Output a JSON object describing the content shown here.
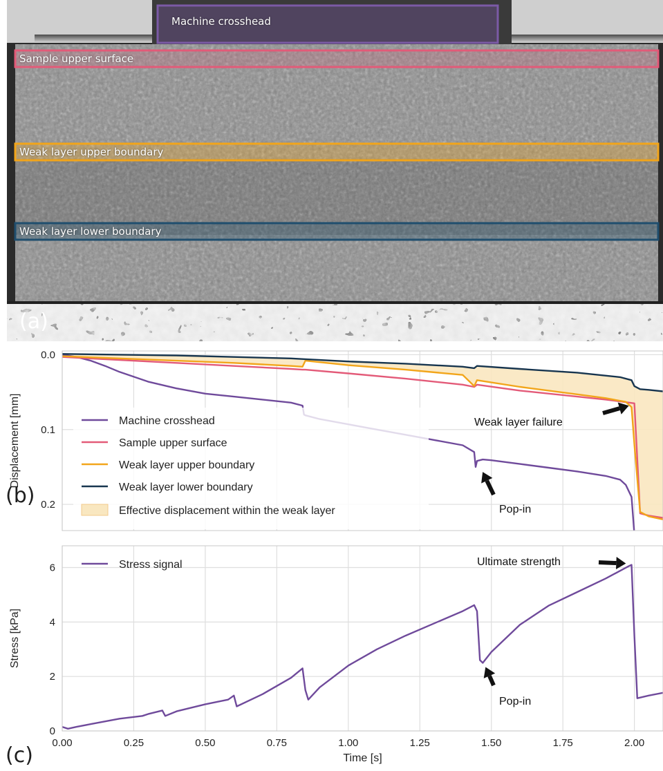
{
  "image_panel": {
    "panel_letter": "(a)",
    "regions": [
      {
        "label": "Machine crosshead",
        "color": "#7b5aa6"
      },
      {
        "label": "Sample upper surface",
        "color": "#e35a78"
      },
      {
        "label": "Weak layer upper boundary",
        "color": "#f2a51a"
      },
      {
        "label": "Weak layer lower boundary",
        "color": "#1f4e6e"
      }
    ]
  },
  "chart_data": [
    {
      "type": "line",
      "panel_letter": "(b)",
      "ylabel": "Displacement [mm]",
      "xlim": [
        0,
        2.1
      ],
      "ylim": [
        0.235,
        -0.005
      ],
      "yticks": [
        "0.0",
        "0.1",
        "0.2"
      ],
      "grid": true,
      "legend_position": "left",
      "series": [
        {
          "name": "Machine crosshead",
          "color": "#6f4a9b",
          "x": [
            0,
            0.05,
            0.1,
            0.15,
            0.2,
            0.3,
            0.4,
            0.5,
            0.6,
            0.7,
            0.8,
            0.84,
            0.845,
            0.85,
            0.9,
            1.0,
            1.1,
            1.2,
            1.3,
            1.4,
            1.44,
            1.445,
            1.45,
            1.47,
            1.5,
            1.6,
            1.7,
            1.8,
            1.9,
            1.95,
            1.97,
            1.99,
            2.0
          ],
          "y": [
            0.0,
            0.003,
            0.008,
            0.015,
            0.023,
            0.036,
            0.045,
            0.052,
            0.056,
            0.06,
            0.064,
            0.068,
            0.08,
            0.081,
            0.086,
            0.093,
            0.1,
            0.107,
            0.114,
            0.121,
            0.13,
            0.15,
            0.142,
            0.14,
            0.141,
            0.146,
            0.151,
            0.156,
            0.162,
            0.167,
            0.174,
            0.19,
            0.24
          ]
        },
        {
          "name": "Sample upper surface",
          "color": "#e35a78",
          "x": [
            0,
            0.2,
            0.4,
            0.6,
            0.8,
            0.84,
            0.85,
            1.0,
            1.2,
            1.4,
            1.44,
            1.45,
            1.6,
            1.8,
            1.9,
            2.0,
            2.02,
            2.05,
            2.1
          ],
          "y": [
            0.003,
            0.007,
            0.011,
            0.015,
            0.019,
            0.02,
            0.02,
            0.025,
            0.032,
            0.04,
            0.043,
            0.04,
            0.048,
            0.056,
            0.06,
            0.065,
            0.212,
            0.215,
            0.218
          ]
        },
        {
          "name": "Weak layer upper boundary",
          "color": "#f2a51a",
          "x": [
            0,
            0.2,
            0.4,
            0.6,
            0.8,
            0.84,
            0.85,
            1.0,
            1.2,
            1.4,
            1.44,
            1.45,
            1.6,
            1.8,
            1.9,
            1.97,
            1.99,
            2.0,
            2.02,
            2.05,
            2.1
          ],
          "y": [
            0.002,
            0.005,
            0.008,
            0.011,
            0.015,
            0.016,
            0.008,
            0.014,
            0.02,
            0.027,
            0.042,
            0.034,
            0.043,
            0.053,
            0.058,
            0.063,
            0.07,
            0.12,
            0.21,
            0.216,
            0.22
          ]
        },
        {
          "name": "Weak layer lower boundary",
          "color": "#17354f",
          "x": [
            0,
            0.2,
            0.4,
            0.6,
            0.8,
            0.85,
            1.0,
            1.2,
            1.4,
            1.44,
            1.45,
            1.6,
            1.8,
            1.95,
            1.99,
            2.0,
            2.02,
            2.05,
            2.1
          ],
          "y": [
            -0.001,
            0.0,
            0.001,
            0.003,
            0.005,
            0.006,
            0.009,
            0.012,
            0.016,
            0.018,
            0.015,
            0.019,
            0.024,
            0.03,
            0.034,
            0.042,
            0.046,
            0.047,
            0.049
          ]
        }
      ],
      "fill_label": "Effective displacement within the weak layer",
      "fill_color": "#f9e7c0",
      "annotations": [
        {
          "text": "Weak layer failure",
          "at": [
            2.0,
            0.07
          ]
        },
        {
          "text": "Pop-in",
          "at": [
            1.46,
            0.153
          ]
        }
      ]
    },
    {
      "type": "line",
      "panel_letter": "(c)",
      "xlabel": "Time [s]",
      "ylabel": "Stress [kPa]",
      "xlim": [
        0,
        2.1
      ],
      "ylim": [
        0,
        6.8
      ],
      "xticks": [
        "0.00",
        "0.25",
        "0.50",
        "0.75",
        "1.00",
        "1.25",
        "1.50",
        "1.75",
        "2.00"
      ],
      "yticks": [
        "0",
        "2",
        "4",
        "6"
      ],
      "grid": true,
      "legend_position": "top-left",
      "series": [
        {
          "name": "Stress signal",
          "color": "#6f4a9b",
          "x": [
            0,
            0.02,
            0.05,
            0.1,
            0.2,
            0.28,
            0.3,
            0.35,
            0.36,
            0.4,
            0.5,
            0.58,
            0.6,
            0.61,
            0.7,
            0.8,
            0.84,
            0.85,
            0.86,
            0.9,
            1.0,
            1.1,
            1.2,
            1.3,
            1.4,
            1.44,
            1.45,
            1.46,
            1.47,
            1.5,
            1.6,
            1.7,
            1.8,
            1.9,
            1.98,
            1.99,
            2.0,
            2.01,
            2.05,
            2.1
          ],
          "y": [
            0.15,
            0.08,
            0.15,
            0.25,
            0.45,
            0.55,
            0.62,
            0.75,
            0.55,
            0.72,
            0.98,
            1.15,
            1.3,
            0.9,
            1.35,
            1.95,
            2.3,
            1.5,
            1.15,
            1.6,
            2.4,
            3.0,
            3.5,
            3.95,
            4.4,
            4.62,
            4.4,
            2.6,
            2.5,
            2.9,
            3.9,
            4.6,
            5.1,
            5.6,
            6.05,
            6.1,
            3.5,
            1.2,
            1.3,
            1.4
          ]
        }
      ],
      "annotations": [
        {
          "text": "Ultimate strength",
          "at": [
            1.98,
            6.1
          ]
        },
        {
          "text": "Pop-in",
          "at": [
            1.47,
            2.5
          ]
        }
      ]
    }
  ]
}
